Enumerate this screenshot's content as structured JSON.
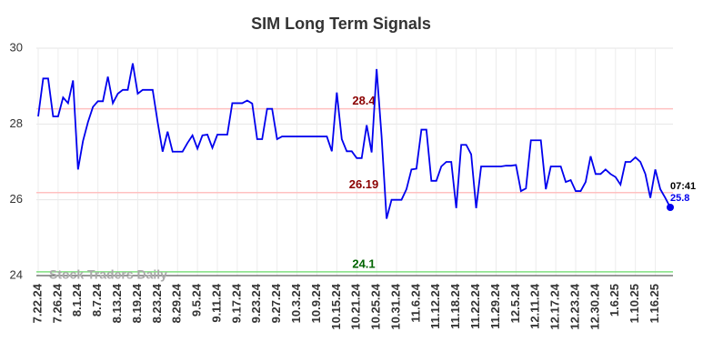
{
  "chart_data": {
    "type": "line",
    "title": "SIM Long Term Signals",
    "categories": [
      "7.22.24",
      null,
      null,
      null,
      "7.26.24",
      null,
      null,
      null,
      "8.1.24",
      null,
      null,
      null,
      "8.7.24",
      null,
      null,
      null,
      "8.13.24",
      null,
      null,
      null,
      "8.19.24",
      null,
      null,
      null,
      "8.23.24",
      null,
      null,
      null,
      "8.29.24",
      null,
      null,
      null,
      "9.5.24",
      null,
      null,
      null,
      "9.11.24",
      null,
      null,
      null,
      "9.17.24",
      null,
      null,
      null,
      "9.23.24",
      null,
      null,
      null,
      "9.27.24",
      null,
      null,
      null,
      "10.3.24",
      null,
      null,
      null,
      "10.9.24",
      null,
      null,
      null,
      "10.15.24",
      null,
      null,
      null,
      "10.21.24",
      null,
      null,
      null,
      "10.25.24",
      null,
      null,
      null,
      "10.31.24",
      null,
      null,
      null,
      "11.6.24",
      null,
      null,
      null,
      "11.12.24",
      null,
      null,
      null,
      "11.18.24",
      null,
      null,
      null,
      "11.22.24",
      null,
      null,
      null,
      "11.29.24",
      null,
      null,
      null,
      "12.5.24",
      null,
      null,
      null,
      "12.11.24",
      null,
      null,
      null,
      "12.17.24",
      null,
      null,
      null,
      "12.23.24",
      null,
      null,
      null,
      "12.30.24",
      null,
      null,
      null,
      "1.6.25",
      null,
      null,
      null,
      "1.10.25",
      null,
      null,
      null,
      "1.16.25",
      null,
      null,
      null
    ],
    "series": [
      {
        "name": "SIM",
        "color": "#0000ee",
        "values": [
          28.2,
          29.2,
          29.2,
          28.2,
          28.2,
          28.7,
          28.55,
          29.15,
          26.8,
          27.55,
          28.05,
          28.45,
          28.6,
          28.6,
          29.25,
          28.55,
          28.8,
          28.9,
          28.9,
          29.6,
          28.8,
          28.9,
          28.9,
          28.9,
          28.05,
          27.27,
          27.8,
          27.27,
          27.27,
          27.27,
          27.5,
          27.7,
          27.35,
          27.7,
          27.72,
          27.37,
          27.72,
          27.72,
          27.72,
          28.55,
          28.55,
          28.55,
          28.62,
          28.54,
          27.6,
          27.6,
          28.4,
          28.4,
          27.6,
          27.67,
          27.67,
          27.67,
          27.67,
          27.67,
          27.67,
          27.67,
          27.67,
          27.67,
          27.67,
          27.28,
          28.83,
          27.6,
          27.28,
          27.28,
          27.1,
          27.1,
          27.97,
          27.25,
          29.45,
          27.67,
          25.5,
          26.0,
          26.0,
          26.0,
          26.28,
          26.8,
          26.82,
          27.85,
          27.85,
          26.5,
          26.5,
          26.88,
          27.0,
          27.0,
          25.78,
          27.45,
          27.45,
          27.2,
          25.78,
          26.88,
          26.88,
          26.88,
          26.88,
          26.88,
          26.9,
          26.9,
          26.92,
          26.23,
          26.3,
          27.57,
          27.57,
          27.57,
          26.28,
          26.88,
          26.88,
          26.88,
          26.47,
          26.52,
          26.23,
          26.23,
          26.47,
          27.15,
          26.68,
          26.68,
          26.8,
          26.68,
          26.6,
          26.4,
          27.0,
          27.0,
          27.12,
          27.0,
          26.68,
          26.05,
          26.8,
          26.28,
          26.05,
          25.8
        ]
      }
    ],
    "ylim": [
      24,
      30
    ],
    "yticks": [
      24,
      26,
      28,
      30
    ],
    "grid": true,
    "hlines": [
      {
        "value": 28.4,
        "color": "#ffc0c0",
        "label_color": "#8b0000"
      },
      {
        "value": 26.19,
        "color": "#ffc0c0",
        "label_color": "#8b0000"
      },
      {
        "value": 24.1,
        "color": "#80e080",
        "label_color": "#006400"
      }
    ],
    "last_time": "07:41",
    "watermark": "Stock Traders Daily"
  }
}
